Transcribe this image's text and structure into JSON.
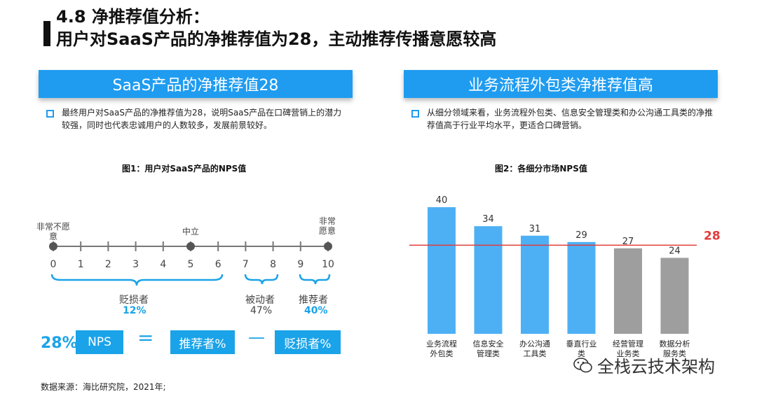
{
  "header": {
    "line1": "4.8 净推荐值分析：",
    "line2": "用户对SaaS产品的净推荐值为28，主动推荐传播意愿较高"
  },
  "left_panel": {
    "banner": "SaaS产品的净推荐值28",
    "bullet": "最终用户对SaaS产品的净推荐值为28，说明SaaS产品在口碑营销上的潜力较强，同时也代表忠诚用户的人数较多，发展前景较好。",
    "figure_title": "图1：用户对SaaS产品的NPS值",
    "scale": {
      "numbers": [
        "0",
        "1",
        "2",
        "3",
        "4",
        "5",
        "6",
        "7",
        "8",
        "9",
        "10"
      ],
      "label_left": "非常不愿意",
      "label_mid": "中立",
      "label_right": "非常愿意"
    },
    "groups": {
      "detractors_label": "贬损者",
      "detractors_pct": "12%",
      "passives_label": "被动者",
      "passives_pct": "47%",
      "promoters_label": "推荐者",
      "promoters_pct": "40%"
    },
    "formula": {
      "result": "28%",
      "nps": "NPS",
      "equals": "=",
      "promoters": "推荐者%",
      "minus": "—",
      "detractors": "贬损者%"
    }
  },
  "right_panel": {
    "banner": "业务流程外包类净推荐值高",
    "bullet": "从细分领域来看，业务流程外包类、信息安全管理类和办公沟通工具类的净推荐值高于行业平均水平，更适合口碑营销。",
    "figure_title": "图2：各细分市场NPS值"
  },
  "chart_data": {
    "type": "bar",
    "categories": [
      "业务流程外包类",
      "信息安全管理类",
      "办公沟通工具类",
      "垂直行业类",
      "经营管理业务类",
      "数据分析服务类"
    ],
    "category_lines": [
      [
        "业务流程",
        "外包类"
      ],
      [
        "信息安全",
        "管理类"
      ],
      [
        "办公沟通",
        "工具类"
      ],
      [
        "垂直行业",
        "类"
      ],
      [
        "经营管理",
        "业务类"
      ],
      [
        "数据分析",
        "服务类"
      ]
    ],
    "values": [
      40,
      34,
      31,
      29,
      27,
      24
    ],
    "bar_colors": [
      "#4db0f5",
      "#4db0f5",
      "#4db0f5",
      "#4db0f5",
      "#9e9e9e",
      "#9e9e9e"
    ],
    "reference_line": {
      "value": 28,
      "label": "28",
      "color": "#e23b3b"
    },
    "ylim": [
      0,
      42
    ],
    "title": "图2：各细分市场NPS值"
  },
  "footer": {
    "source": "数据来源：海比研究院，2021年;",
    "wechat_name": "全栈云技术架构"
  },
  "colors": {
    "accent": "#1f9cf0",
    "bar_blue": "#4db0f5",
    "bar_gray": "#9e9e9e",
    "ref_red": "#e23b3b"
  }
}
